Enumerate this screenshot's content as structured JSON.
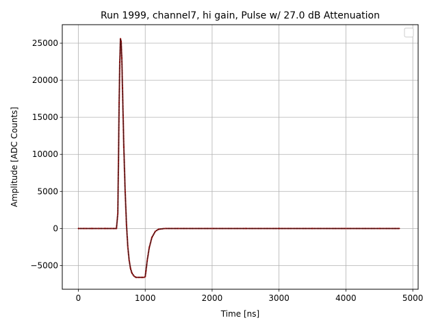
{
  "chart_data": {
    "type": "line",
    "title": "Run 1999, channel7, hi gain, Pulse w/ 27.0 dB Attenuation",
    "xlabel": "Time [ns]",
    "ylabel": "Amplitude [ADC Counts]",
    "xlim": [
      -240,
      5080
    ],
    "ylim": [
      -8200,
      27500
    ],
    "xticks": [
      0,
      1000,
      2000,
      3000,
      4000,
      5000
    ],
    "xtick_labels": [
      "0",
      "1000",
      "2000",
      "3000",
      "4000",
      "5000"
    ],
    "yticks": [
      -5000,
      0,
      5000,
      10000,
      15000,
      20000,
      25000
    ],
    "ytick_labels": [
      "−5000",
      "0",
      "5000",
      "10000",
      "15000",
      "20000",
      "25000"
    ],
    "grid": true,
    "legend": {
      "placement": "top-right",
      "entries": []
    },
    "series": [
      {
        "color": "#8b0000",
        "style": "dotted-dense",
        "x": [
          0,
          100,
          200,
          300,
          400,
          500,
          570,
          590,
          600,
          610,
          620,
          630,
          640,
          650,
          660,
          670,
          680,
          700,
          720,
          740,
          760,
          780,
          800,
          830,
          860,
          900,
          950,
          980,
          1000,
          1010,
          1030,
          1060,
          1100,
          1150,
          1200,
          1300,
          1500,
          2000,
          2500,
          3000,
          3500,
          4000,
          4500,
          4800
        ],
        "y": [
          0,
          0,
          0,
          0,
          0,
          0,
          0,
          2000,
          9000,
          17000,
          22500,
          25600,
          25200,
          23000,
          19000,
          15000,
          11000,
          5000,
          500,
          -2500,
          -4300,
          -5400,
          -6000,
          -6400,
          -6600,
          -6600,
          -6600,
          -6600,
          -6500,
          -5800,
          -4300,
          -2600,
          -1200,
          -400,
          -100,
          0,
          0,
          0,
          0,
          0,
          0,
          0,
          0,
          0
        ]
      }
    ]
  }
}
